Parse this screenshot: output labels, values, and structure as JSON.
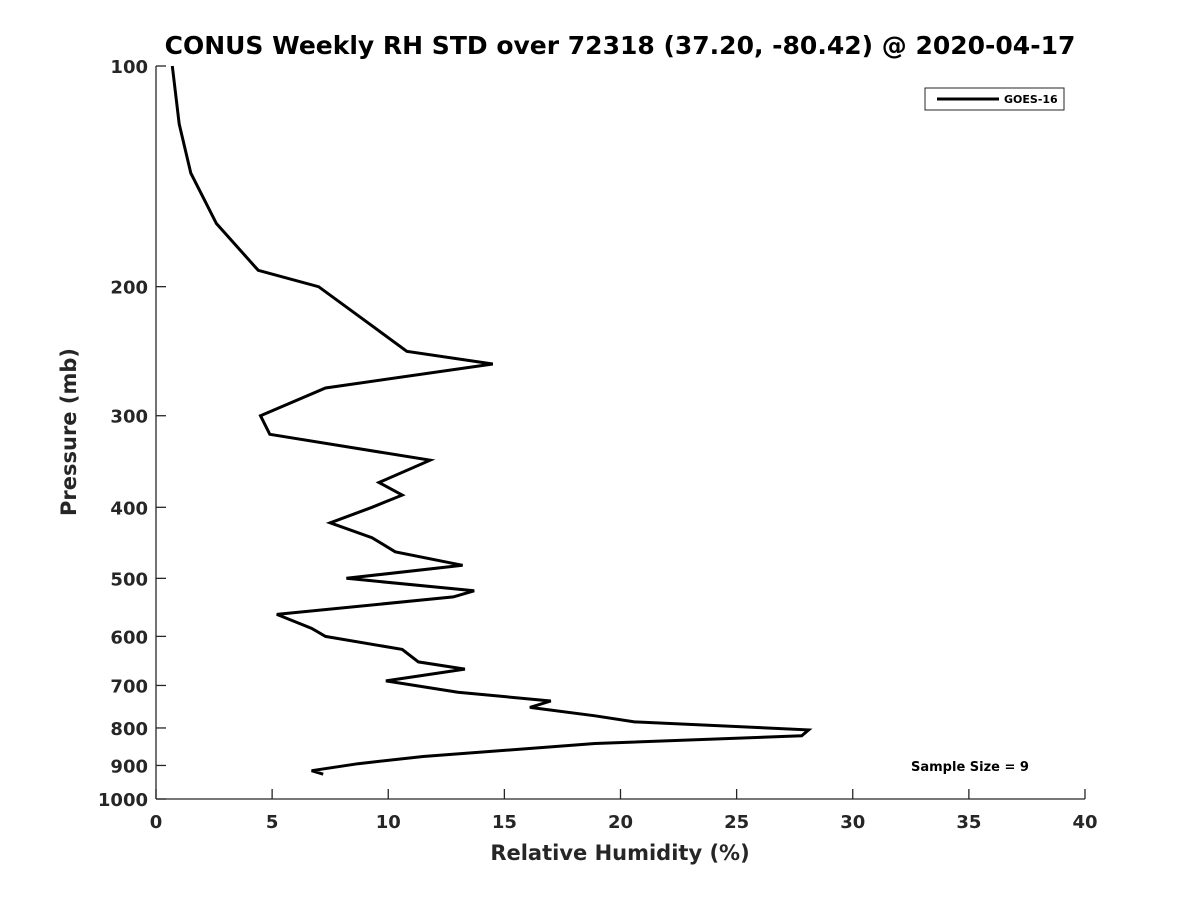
{
  "chart_data": {
    "type": "line",
    "title": "CONUS Weekly RH STD over 72318 (37.20, -80.42) @ 2020-04-17",
    "xlabel": "Relative Humidity (%)",
    "ylabel": "Pressure (mb)",
    "xlim": [
      0,
      40
    ],
    "ylim": [
      100,
      1000
    ],
    "y_scale": "log",
    "y_reversed": true,
    "x_ticks": [
      "0",
      "5",
      "10",
      "15",
      "20",
      "25",
      "30",
      "35",
      "40"
    ],
    "y_ticks": [
      "100",
      "200",
      "300",
      "400",
      "500",
      "600",
      "700",
      "800",
      "900",
      "1000"
    ],
    "grid": false,
    "legend_position": "top-right",
    "annotation": "Sample Size = 9",
    "series": [
      {
        "name": "GOES-16",
        "color": "#000000",
        "points": [
          [
            0.7,
            100
          ],
          [
            1.0,
            120
          ],
          [
            1.5,
            140
          ],
          [
            2.6,
            164
          ],
          [
            4.4,
            190
          ],
          [
            7.0,
            200
          ],
          [
            9.2,
            225
          ],
          [
            10.8,
            245
          ],
          [
            14.5,
            255
          ],
          [
            7.3,
            275
          ],
          [
            4.5,
            300
          ],
          [
            4.9,
            318
          ],
          [
            11.8,
            345
          ],
          [
            9.6,
            370
          ],
          [
            10.6,
            385
          ],
          [
            9.3,
            400
          ],
          [
            7.5,
            420
          ],
          [
            9.3,
            440
          ],
          [
            10.3,
            460
          ],
          [
            13.2,
            480
          ],
          [
            8.2,
            500
          ],
          [
            13.7,
            520
          ],
          [
            12.8,
            530
          ],
          [
            5.2,
            560
          ],
          [
            6.7,
            585
          ],
          [
            7.3,
            600
          ],
          [
            10.6,
            625
          ],
          [
            11.3,
            650
          ],
          [
            13.3,
            665
          ],
          [
            9.9,
            690
          ],
          [
            13.0,
            715
          ],
          [
            17.0,
            735
          ],
          [
            16.1,
            750
          ],
          [
            18.9,
            770
          ],
          [
            20.6,
            785
          ],
          [
            28.1,
            805
          ],
          [
            27.8,
            820
          ],
          [
            18.9,
            840
          ],
          [
            11.5,
            875
          ],
          [
            8.7,
            895
          ],
          [
            6.7,
            915
          ],
          [
            7.2,
            925
          ]
        ]
      }
    ]
  }
}
